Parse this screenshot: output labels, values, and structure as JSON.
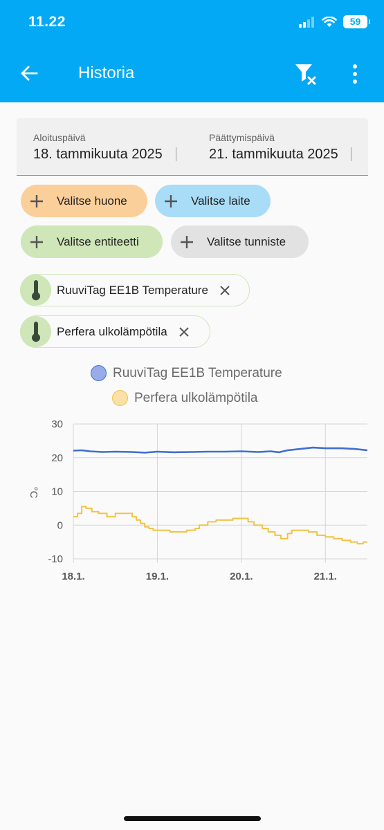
{
  "status_bar": {
    "time": "11.22",
    "battery": "59"
  },
  "toolbar": {
    "title": "Historia",
    "back_icon": "arrow-left-icon",
    "filter_icon": "filter-clear-icon",
    "more_icon": "more-vertical-icon"
  },
  "date_range": {
    "start_label": "Aloituspäivä",
    "start_value": "18. tammikuuta 2025",
    "end_label": "Päättymispäivä",
    "end_value": "21. tammikuuta 2025"
  },
  "target_picker": {
    "room": "Valitse huone",
    "device": "Valitse laite",
    "entity": "Valitse entiteetti",
    "label": "Valitse tunniste"
  },
  "selected_entities": [
    {
      "name": "RuuviTag EE1B Temperature",
      "icon": "thermometer-icon"
    },
    {
      "name": "Perfera ulkolämpötila",
      "icon": "thermometer-icon"
    }
  ],
  "colors": {
    "accent": "#03a9f4",
    "room_chip": "#fbcf9a",
    "device_chip": "#a9dcf7",
    "entity_chip": "#cfe6b8",
    "label_chip": "#e2e2e2",
    "series_1": "#3f6fd0",
    "series_2": "#f2c243"
  },
  "chart_data": {
    "type": "line",
    "title": "",
    "ylabel": "°C",
    "xlabel": "",
    "ylim": [
      -10,
      30
    ],
    "yticks": [
      -10,
      0,
      10,
      20,
      30
    ],
    "xlim": [
      0,
      3.5
    ],
    "xticks": [
      {
        "value": 0,
        "label": "18.1."
      },
      {
        "value": 1,
        "label": "19.1."
      },
      {
        "value": 2,
        "label": "20.1."
      },
      {
        "value": 3,
        "label": "21.1."
      }
    ],
    "grid": true,
    "legend_position": "top-center",
    "series": [
      {
        "name": "RuuviTag EE1B Temperature",
        "color": "#3f6fd0",
        "step": false,
        "points": [
          [
            0,
            22.1
          ],
          [
            0.1,
            22.2
          ],
          [
            0.2,
            21.9
          ],
          [
            0.35,
            21.7
          ],
          [
            0.5,
            21.8
          ],
          [
            0.7,
            21.7
          ],
          [
            0.85,
            21.5
          ],
          [
            1.0,
            21.8
          ],
          [
            1.2,
            21.6
          ],
          [
            1.4,
            21.7
          ],
          [
            1.6,
            21.8
          ],
          [
            1.8,
            21.8
          ],
          [
            2.0,
            21.9
          ],
          [
            2.2,
            21.7
          ],
          [
            2.35,
            21.9
          ],
          [
            2.45,
            21.6
          ],
          [
            2.55,
            22.2
          ],
          [
            2.7,
            22.6
          ],
          [
            2.85,
            23.0
          ],
          [
            3.0,
            22.8
          ],
          [
            3.2,
            22.8
          ],
          [
            3.35,
            22.6
          ],
          [
            3.5,
            22.2
          ]
        ]
      },
      {
        "name": "Perfera ulkolämpötila",
        "color": "#f2c243",
        "step": true,
        "points": [
          [
            0,
            2.5
          ],
          [
            0.05,
            3.5
          ],
          [
            0.1,
            5.5
          ],
          [
            0.15,
            5.0
          ],
          [
            0.22,
            4.0
          ],
          [
            0.3,
            3.5
          ],
          [
            0.4,
            2.5
          ],
          [
            0.5,
            3.5
          ],
          [
            0.6,
            3.5
          ],
          [
            0.7,
            2.5
          ],
          [
            0.75,
            1.5
          ],
          [
            0.8,
            0.5
          ],
          [
            0.85,
            -0.5
          ],
          [
            0.9,
            -1.0
          ],
          [
            0.95,
            -1.5
          ],
          [
            1.05,
            -1.5
          ],
          [
            1.15,
            -2.0
          ],
          [
            1.25,
            -2.0
          ],
          [
            1.35,
            -1.5
          ],
          [
            1.45,
            -1.0
          ],
          [
            1.5,
            0
          ],
          [
            1.6,
            1.0
          ],
          [
            1.7,
            1.5
          ],
          [
            1.8,
            1.5
          ],
          [
            1.9,
            2.0
          ],
          [
            2.0,
            2.0
          ],
          [
            2.08,
            1.0
          ],
          [
            2.15,
            0
          ],
          [
            2.25,
            -1.0
          ],
          [
            2.32,
            -2.0
          ],
          [
            2.4,
            -3.0
          ],
          [
            2.47,
            -4.0
          ],
          [
            2.55,
            -2.5
          ],
          [
            2.6,
            -1.5
          ],
          [
            2.7,
            -1.5
          ],
          [
            2.8,
            -2.0
          ],
          [
            2.9,
            -3.0
          ],
          [
            3.0,
            -3.5
          ],
          [
            3.1,
            -4.0
          ],
          [
            3.2,
            -4.5
          ],
          [
            3.3,
            -5.0
          ],
          [
            3.38,
            -5.5
          ],
          [
            3.45,
            -5.0
          ],
          [
            3.5,
            -5.0
          ]
        ]
      }
    ]
  }
}
